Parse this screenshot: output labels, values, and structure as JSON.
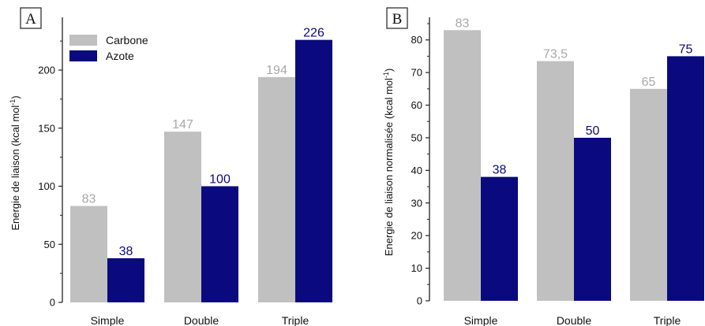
{
  "colors": {
    "carbone": "#c0c0c0",
    "azote": "#0a0a7e",
    "axis": "#222222"
  },
  "chart_data": [
    {
      "type": "bar",
      "panel_label": "A",
      "title": "",
      "xlabel": "",
      "ylabel": "Energie de liaison (kcal mol",
      "ylabel_sup": "-1",
      "ylabel_end": ")",
      "categories": [
        "Simple",
        "Double",
        "Triple"
      ],
      "ylim": [
        0,
        240
      ],
      "yticks": [
        0,
        50,
        100,
        150,
        200
      ],
      "legend": "top-left",
      "series": [
        {
          "name": "Carbone",
          "values": [
            83,
            147,
            194
          ],
          "labels": [
            "83",
            "147",
            "194"
          ]
        },
        {
          "name": "Azote",
          "values": [
            38,
            100,
            226
          ],
          "labels": [
            "38",
            "100",
            "226"
          ]
        }
      ]
    },
    {
      "type": "bar",
      "panel_label": "B",
      "title": "",
      "xlabel": "",
      "ylabel": "Energie de liaison normalisée (kcal mol",
      "ylabel_sup": "-1",
      "ylabel_end": ")",
      "categories": [
        "Simple",
        "Double",
        "Triple"
      ],
      "ylim": [
        0,
        85
      ],
      "yticks": [
        0,
        10,
        20,
        30,
        40,
        50,
        60,
        70,
        80
      ],
      "legend": "none",
      "series": [
        {
          "name": "Carbone",
          "values": [
            83,
            73.5,
            65
          ],
          "labels": [
            "83",
            "73,5",
            "65"
          ]
        },
        {
          "name": "Azote",
          "values": [
            38,
            50,
            75
          ],
          "labels": [
            "38",
            "50",
            "75"
          ]
        }
      ]
    }
  ]
}
